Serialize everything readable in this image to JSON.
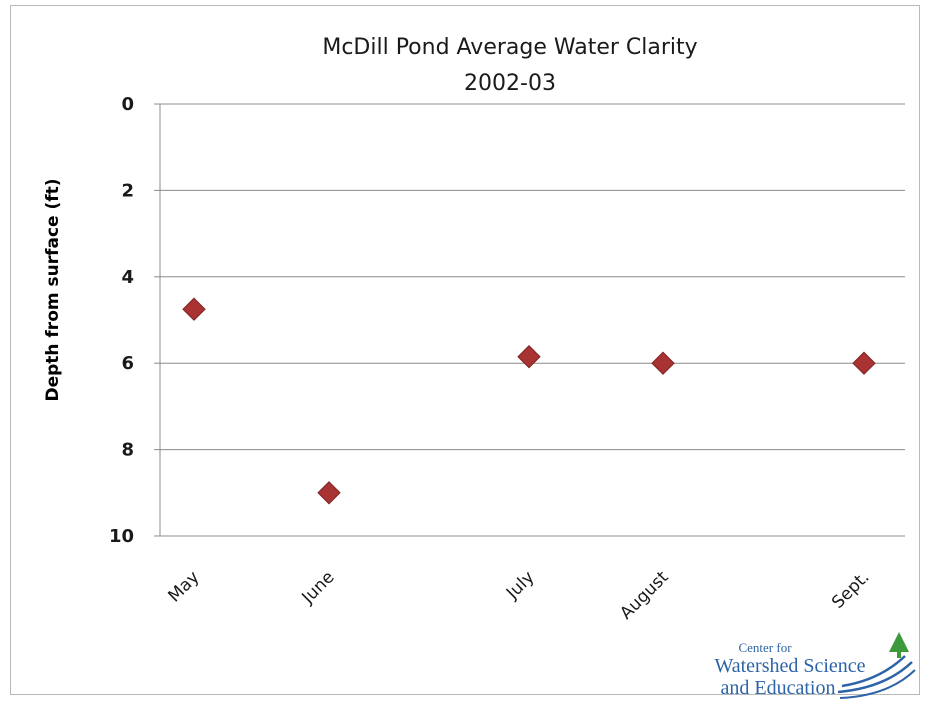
{
  "chart_data": {
    "type": "scatter",
    "title_lines": [
      "McDill Pond Average Water Clarity",
      "2002-03"
    ],
    "ylabel": "Depth from surface (ft)",
    "xlabel": "",
    "categories": [
      "May",
      "June",
      "July",
      "August",
      "Sept."
    ],
    "values": [
      4.75,
      9.0,
      5.85,
      6.0,
      6.0
    ],
    "ylim": [
      0,
      10
    ],
    "y_ticks": [
      "0",
      "2",
      "4",
      "6",
      "8",
      "10"
    ],
    "y_inverted": true,
    "grid": true,
    "legend": "none",
    "marker": "diamond",
    "marker_color": "#a93232"
  },
  "logo": {
    "line1": "Center for",
    "line2": "Watershed Science",
    "line3": "and Education",
    "color": "#2d63a8",
    "tree_color": "#3c9a3c"
  }
}
